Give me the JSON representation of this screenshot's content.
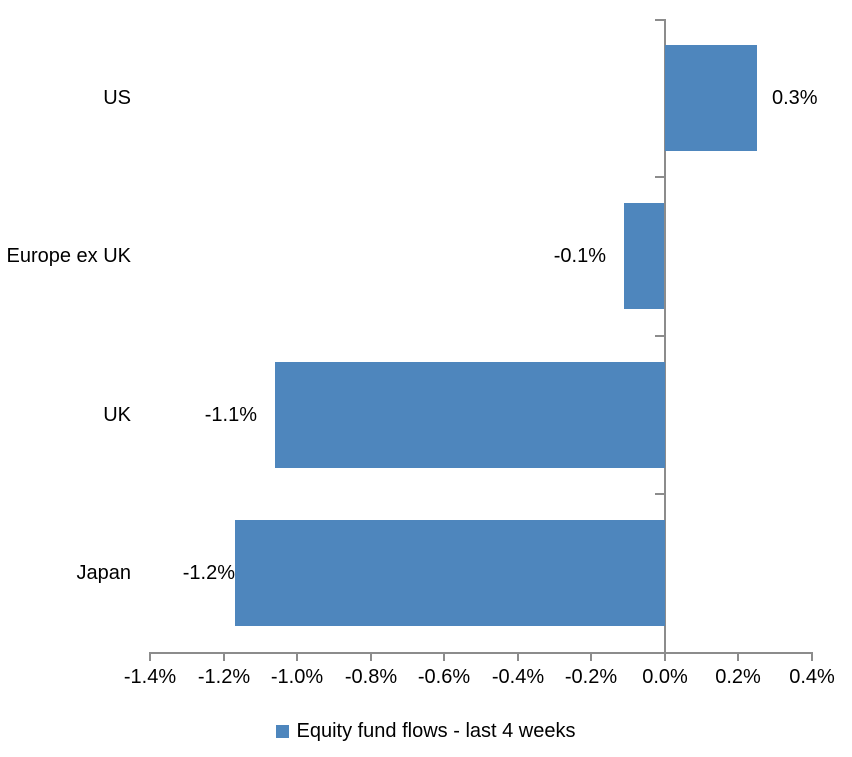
{
  "chart_data": {
    "type": "bar",
    "orientation": "horizontal",
    "categories": [
      "US",
      "Europe ex UK",
      "UK",
      "Japan"
    ],
    "series": [
      {
        "name": "Equity fund flows - last 4 weeks",
        "values": [
          0.3,
          -0.1,
          -1.1,
          -1.2
        ],
        "values_precise_pct": [
          0.25,
          -0.11,
          -1.06,
          -1.17
        ],
        "data_labels": [
          "0.3%",
          "-0.1%",
          "-1.1%",
          "-1.2%"
        ]
      }
    ],
    "xlim": [
      -1.4,
      0.4
    ],
    "x_ticks": [
      {
        "value": -1.4,
        "label": "-1.4%"
      },
      {
        "value": -1.2,
        "label": "-1.2%"
      },
      {
        "value": -1.0,
        "label": "-1.0%"
      },
      {
        "value": -0.8,
        "label": "-0.8%"
      },
      {
        "value": -0.6,
        "label": "-0.6%"
      },
      {
        "value": -0.4,
        "label": "-0.4%"
      },
      {
        "value": -0.2,
        "label": "-0.2%"
      },
      {
        "value": 0.0,
        "label": "0.0%"
      },
      {
        "value": 0.2,
        "label": "0.2%"
      },
      {
        "value": 0.4,
        "label": "0.4%"
      }
    ],
    "grid": false,
    "legend_position": "bottom",
    "colors": {
      "bar": "#4E86BD",
      "axis": "#8C8C8C",
      "text": "#000000",
      "background": "#FFFFFF"
    }
  },
  "legend": {
    "marker_icon": "legend-square-icon",
    "label": "Equity fund flows - last 4 weeks"
  }
}
